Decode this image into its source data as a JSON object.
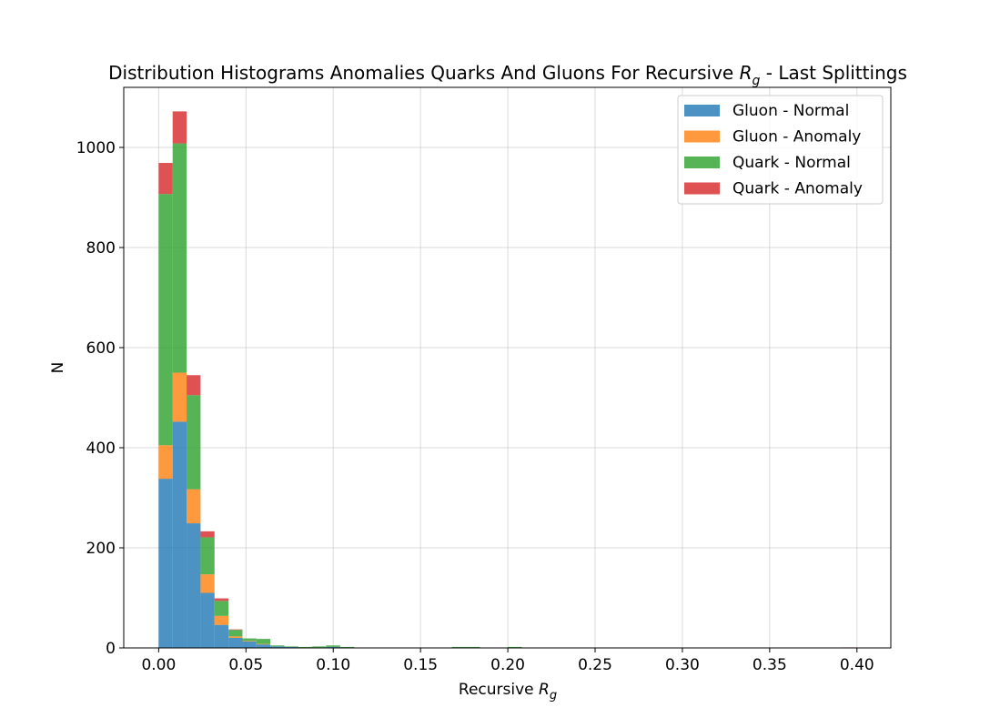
{
  "chart_data": {
    "type": "bar",
    "stacked": true,
    "title_main": "Distribution Histograms Anomalies Quarks And Gluons For Recursive ",
    "title_var": "R",
    "title_sub": "g",
    "title_tail": " - Last Splittings",
    "xlabel_main": "Recursive ",
    "xlabel_var": "R",
    "xlabel_sub": "g",
    "ylabel": "N",
    "xlim": [
      -0.02,
      0.4194
    ],
    "ylim": [
      0,
      1120
    ],
    "xticks": [
      "0.00",
      "0.05",
      "0.10",
      "0.15",
      "0.20",
      "0.25",
      "0.30",
      "0.35",
      "0.40"
    ],
    "xtick_values": [
      0,
      0.05,
      0.1,
      0.15,
      0.2,
      0.25,
      0.3,
      0.35,
      0.4
    ],
    "yticks": [
      "0",
      "200",
      "400",
      "600",
      "800",
      "1000"
    ],
    "ytick_values": [
      0,
      200,
      400,
      600,
      800,
      1000
    ],
    "grid": true,
    "legend_position": "top-right",
    "bin_width": 0.008,
    "bin_starts": [
      0.0,
      0.008,
      0.016,
      0.024,
      0.032,
      0.04,
      0.048,
      0.056,
      0.064,
      0.072,
      0.08,
      0.088,
      0.096,
      0.104,
      0.112,
      0.12,
      0.128,
      0.136,
      0.144,
      0.152,
      0.16,
      0.168,
      0.176,
      0.184,
      0.192,
      0.2,
      0.208,
      0.216,
      0.224,
      0.232,
      0.24,
      0.248,
      0.256,
      0.264,
      0.272,
      0.28,
      0.288,
      0.296,
      0.304,
      0.312,
      0.32,
      0.328,
      0.336,
      0.344,
      0.352,
      0.36,
      0.368,
      0.376,
      0.384,
      0.392
    ],
    "series": [
      {
        "name": "Gluon - Normal",
        "color": "#1f77b4",
        "values": [
          338,
          452,
          249,
          110,
          46,
          20,
          13,
          7,
          3,
          2,
          1,
          1,
          2,
          1,
          0,
          0,
          0,
          0,
          0,
          0,
          0,
          1,
          1,
          0,
          0,
          1,
          0,
          0,
          0,
          0,
          0,
          0,
          0,
          0,
          0,
          0,
          0,
          0,
          0,
          0,
          0,
          0,
          0,
          0,
          0,
          0,
          0,
          0,
          0,
          0
        ]
      },
      {
        "name": "Gluon - Anomaly",
        "color": "#ff7f0e",
        "values": [
          67,
          98,
          68,
          37,
          18,
          3,
          1,
          1,
          0,
          0,
          0,
          0,
          0,
          0,
          0,
          0,
          0,
          0,
          0,
          0,
          0,
          0,
          0,
          0,
          0,
          0,
          0,
          0,
          0,
          0,
          0,
          0,
          0,
          0,
          0,
          0,
          0,
          0,
          0,
          0,
          0,
          0,
          0,
          0,
          0,
          0,
          0,
          0,
          0,
          0
        ]
      },
      {
        "name": "Quark - Normal",
        "color": "#2ca02c",
        "values": [
          502,
          458,
          188,
          74,
          30,
          13,
          5,
          10,
          2,
          1,
          1,
          2,
          3,
          1,
          0,
          0,
          0,
          0,
          0,
          0,
          0,
          1,
          1,
          0,
          0,
          1,
          0,
          0,
          0,
          0,
          0,
          0,
          0,
          0,
          0,
          0,
          0,
          0,
          0,
          0,
          0,
          0,
          0,
          0,
          0,
          0,
          0,
          0,
          0,
          0
        ]
      },
      {
        "name": "Quark - Anomaly",
        "color": "#d62728",
        "values": [
          62,
          64,
          40,
          12,
          5,
          1,
          0,
          0,
          0,
          0,
          0,
          0,
          0,
          0,
          0,
          0,
          0,
          0,
          0,
          0,
          0,
          0,
          0,
          0,
          0,
          0,
          0,
          0,
          0,
          0,
          0,
          0,
          0,
          0,
          0,
          0,
          0,
          0,
          0,
          0,
          0,
          0,
          0,
          0,
          0,
          0,
          0,
          0,
          0,
          1
        ]
      }
    ]
  }
}
